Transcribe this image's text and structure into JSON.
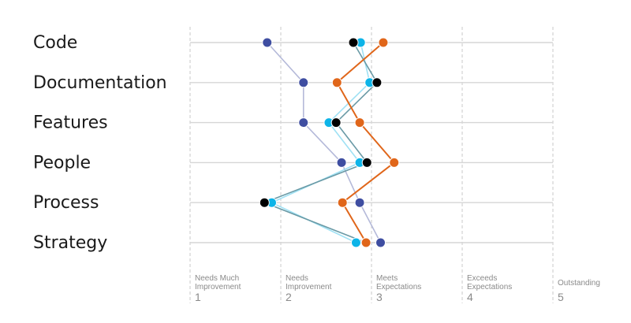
{
  "chart_data": {
    "type": "scatter",
    "categories": [
      "Code",
      "Documentation",
      "Features",
      "People",
      "Process",
      "Strategy"
    ],
    "x_axis": {
      "range": [
        1,
        5
      ],
      "ticks": [
        {
          "value": 1,
          "label_lines": [
            "Needs Much",
            "Improvement"
          ],
          "number": "1"
        },
        {
          "value": 2,
          "label_lines": [
            "Needs",
            "Improvement"
          ],
          "number": "2"
        },
        {
          "value": 3,
          "label_lines": [
            "Meets",
            "Expectations"
          ],
          "number": "3"
        },
        {
          "value": 4,
          "label_lines": [
            "Exceeds",
            "Expectations"
          ],
          "number": "4"
        },
        {
          "value": 5,
          "label_lines": [
            "Outstanding"
          ],
          "number": "5"
        }
      ],
      "gridlines": "dashed"
    },
    "legend": "none",
    "series": [
      {
        "color": "#3f4ea1",
        "line_color": "#b4b9d9",
        "values": [
          1.85,
          2.25,
          2.25,
          2.67,
          2.87,
          3.1
        ]
      },
      {
        "color": "#0db4e8",
        "line_color": "#9fe1f4",
        "values": [
          2.88,
          2.98,
          2.53,
          2.87,
          1.9,
          2.83
        ]
      },
      {
        "color": "#000000",
        "line_color": "#6a9aa6",
        "values": [
          2.8,
          3.06,
          2.61,
          2.95,
          1.82,
          2.94
        ]
      },
      {
        "color": "#e0661a",
        "line_color": "#e0661a",
        "values": [
          3.13,
          2.62,
          2.87,
          3.25,
          2.68,
          2.94
        ]
      }
    ]
  }
}
